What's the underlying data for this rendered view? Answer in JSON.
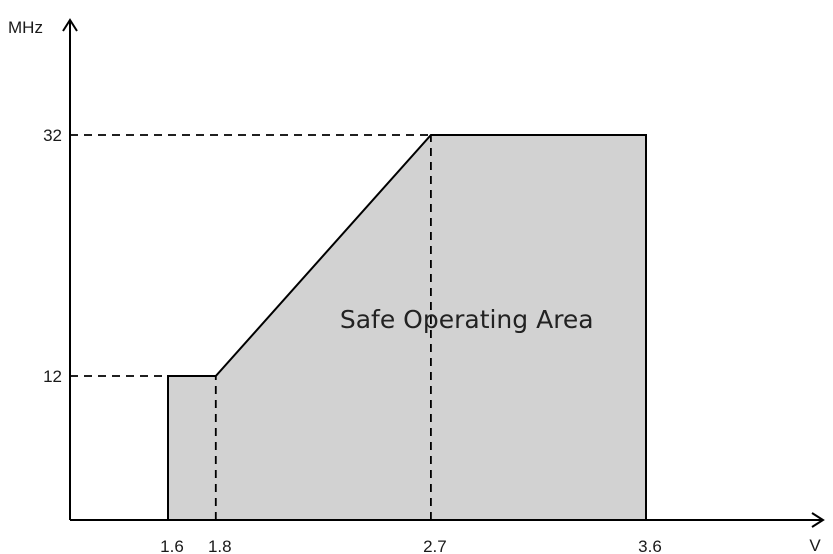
{
  "chart_data": {
    "type": "area",
    "title": "",
    "xlabel": "V",
    "ylabel": "MHz",
    "xlim": [
      1.4,
      3.95
    ],
    "ylim": [
      0,
      38
    ],
    "x_ticks": [
      {
        "value": 1.6,
        "label": "1.6"
      },
      {
        "value": 1.8,
        "label": "1.8"
      },
      {
        "value": 2.7,
        "label": "2.7"
      },
      {
        "value": 3.6,
        "label": "3.6"
      }
    ],
    "y_ticks": [
      {
        "value": 12,
        "label": "12"
      },
      {
        "value": 32,
        "label": "32"
      }
    ],
    "series": [
      {
        "x": [
          1.6,
          1.6,
          1.8,
          2.7,
          3.6,
          3.6
        ],
        "y": [
          0,
          12,
          12,
          32,
          32,
          0
        ]
      }
    ],
    "reference_lines": [
      {
        "axis": "y",
        "value": 12,
        "x_from": 1.4,
        "x_to": 1.6
      },
      {
        "axis": "y",
        "value": 32,
        "x_from": 1.4,
        "x_to": 2.7
      },
      {
        "axis": "x",
        "value": 1.8,
        "y_from": 0,
        "y_to": 12
      },
      {
        "axis": "x",
        "value": 2.7,
        "y_from": 0,
        "y_to": 32
      }
    ],
    "annotations": [
      {
        "text": "Safe Operating Area",
        "x": 2.85,
        "y": 15
      }
    ],
    "grid": false,
    "legend": "none",
    "fill_color": "#d2d2d2",
    "line_color": "#000000"
  }
}
